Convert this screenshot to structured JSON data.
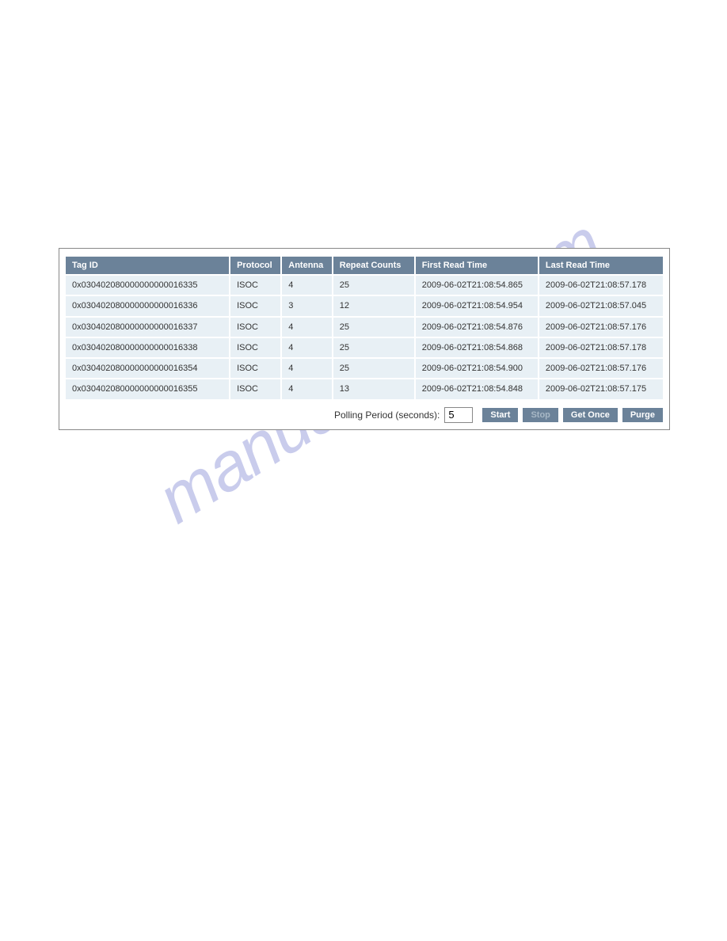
{
  "watermark": "manualshive.com",
  "table": {
    "headers": {
      "tag_id": "Tag ID",
      "protocol": "Protocol",
      "antenna": "Antenna",
      "repeat_counts": "Repeat Counts",
      "first_read": "First Read Time",
      "last_read": "Last Read Time"
    },
    "header_bg": "#6b8299",
    "header_color": "#ffffff",
    "row_bg": "#e8f0f5",
    "rows": [
      {
        "tag_id": "0x030402080000000000016335",
        "protocol": "ISOC",
        "antenna": "4",
        "repeat_counts": "25",
        "first_read": "2009-06-02T21:08:54.865",
        "last_read": "2009-06-02T21:08:57.178"
      },
      {
        "tag_id": "0x030402080000000000016336",
        "protocol": "ISOC",
        "antenna": "3",
        "repeat_counts": "12",
        "first_read": "2009-06-02T21:08:54.954",
        "last_read": "2009-06-02T21:08:57.045"
      },
      {
        "tag_id": "0x030402080000000000016337",
        "protocol": "ISOC",
        "antenna": "4",
        "repeat_counts": "25",
        "first_read": "2009-06-02T21:08:54.876",
        "last_read": "2009-06-02T21:08:57.176"
      },
      {
        "tag_id": "0x030402080000000000016338",
        "protocol": "ISOC",
        "antenna": "4",
        "repeat_counts": "25",
        "first_read": "2009-06-02T21:08:54.868",
        "last_read": "2009-06-02T21:08:57.178"
      },
      {
        "tag_id": "0x030402080000000000016354",
        "protocol": "ISOC",
        "antenna": "4",
        "repeat_counts": "25",
        "first_read": "2009-06-02T21:08:54.900",
        "last_read": "2009-06-02T21:08:57.176"
      },
      {
        "tag_id": "0x030402080000000000016355",
        "protocol": "ISOC",
        "antenna": "4",
        "repeat_counts": "13",
        "first_read": "2009-06-02T21:08:54.848",
        "last_read": "2009-06-02T21:08:57.175"
      }
    ]
  },
  "controls": {
    "polling_label": "Polling Period (seconds):",
    "polling_value": "5",
    "start": "Start",
    "stop": "Stop",
    "get_once": "Get Once",
    "purge": "Purge",
    "btn_bg": "#6b8299",
    "btn_color": "#ffffff"
  }
}
